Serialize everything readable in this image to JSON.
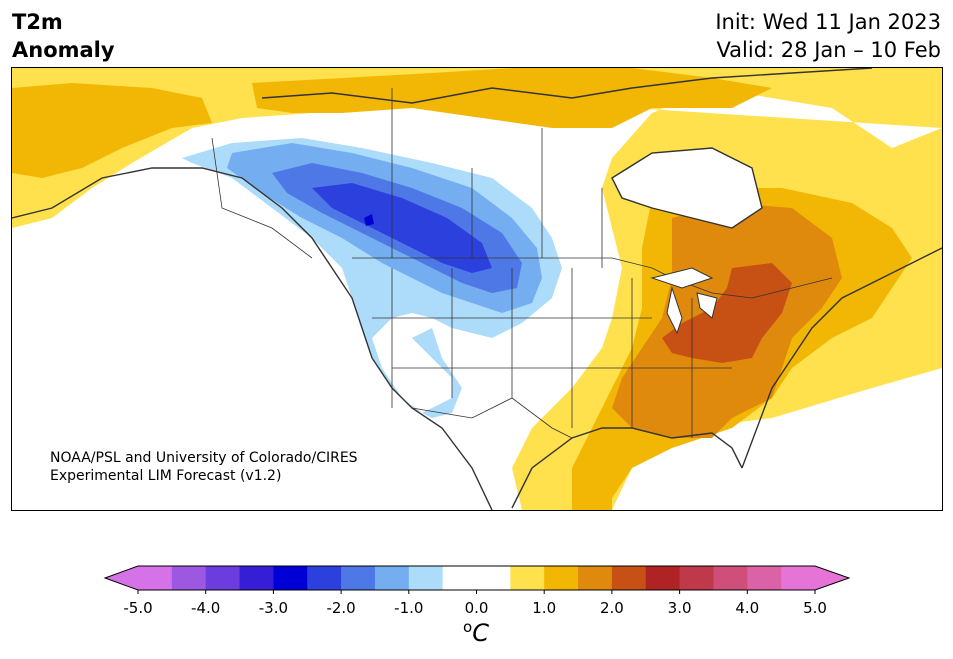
{
  "title": {
    "line1": "T2m",
    "line2": "Anomaly"
  },
  "forecast": {
    "init": "Init: Wed 11 Jan 2023",
    "valid": "Valid: 28 Jan – 10 Feb"
  },
  "credit": {
    "line1": "NOAA/PSL and University of Colorado/CIRES",
    "line2": "Experimental LIM Forecast (v1.2)"
  },
  "colorbar": {
    "unit_prefix": "o",
    "unit_letter": "C",
    "bins": [
      {
        "from": -5.5,
        "to": -5.0,
        "color": "#d672e8"
      },
      {
        "from": -5.0,
        "to": -4.5,
        "color": "#d672e8"
      },
      {
        "from": -4.5,
        "to": -4.0,
        "color": "#9e57e0"
      },
      {
        "from": -4.0,
        "to": -3.5,
        "color": "#6b3ddf"
      },
      {
        "from": -3.5,
        "to": -3.0,
        "color": "#351ed6"
      },
      {
        "from": -3.0,
        "to": -2.5,
        "color": "#0000d6"
      },
      {
        "from": -2.5,
        "to": -2.0,
        "color": "#2c40dd"
      },
      {
        "from": -2.0,
        "to": -1.5,
        "color": "#4e78e5"
      },
      {
        "from": -1.5,
        "to": -1.0,
        "color": "#74aef1"
      },
      {
        "from": -1.0,
        "to": -0.5,
        "color": "#addcfa"
      },
      {
        "from": -0.5,
        "to": 0.5,
        "color": "#ffffff"
      },
      {
        "from": 0.5,
        "to": 1.0,
        "color": "#ffe04d"
      },
      {
        "from": 1.0,
        "to": 1.5,
        "color": "#f2b705"
      },
      {
        "from": 1.5,
        "to": 2.0,
        "color": "#df8a0d"
      },
      {
        "from": 2.0,
        "to": 2.5,
        "color": "#c75015"
      },
      {
        "from": 2.5,
        "to": 3.0,
        "color": "#b02325"
      },
      {
        "from": 3.0,
        "to": 3.5,
        "color": "#c0394a"
      },
      {
        "from": 3.5,
        "to": 4.0,
        "color": "#cf4e7a"
      },
      {
        "from": 4.0,
        "to": 4.5,
        "color": "#dc62a8"
      },
      {
        "from": 4.5,
        "to": 5.0,
        "color": "#e673d6"
      },
      {
        "from": 5.0,
        "to": 5.5,
        "color": "#e673d6"
      }
    ],
    "ticks": [
      "-5.0",
      "-4.0",
      "-3.0",
      "-2.0",
      "-1.0",
      "0.0",
      "1.0",
      "2.0",
      "3.0",
      "4.0",
      "5.0"
    ]
  }
}
